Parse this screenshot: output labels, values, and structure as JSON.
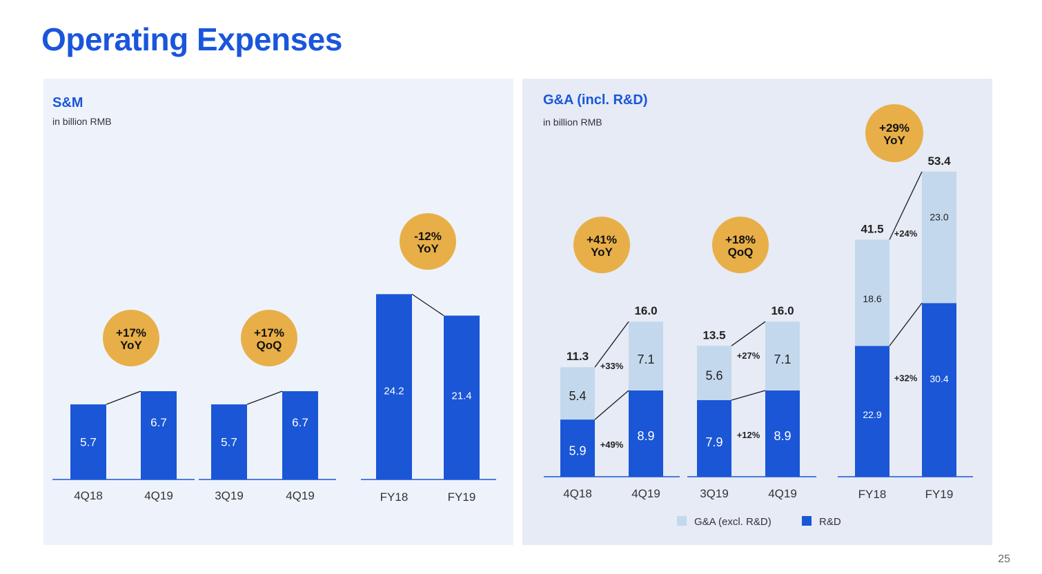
{
  "page": {
    "title": "Operating Expenses",
    "page_number": "25"
  },
  "colors": {
    "title": "#1a56db",
    "rd": "#1a56d6",
    "ga": "#c3d8ec",
    "badge": "#e8af48"
  },
  "left_panel": {
    "title": "S&M",
    "subtitle": "in billion RMB"
  },
  "right_panel": {
    "title": "G&A (incl. R&D)",
    "subtitle": "in billion RMB"
  },
  "chart_data": [
    {
      "type": "bar",
      "title": "S&M",
      "unit": "in billion RMB",
      "groups": [
        {
          "categories": [
            "4Q18",
            "4Q19"
          ],
          "values": [
            5.7,
            6.7
          ],
          "labels": [
            "5.7",
            "6.7"
          ],
          "badge": [
            "+17%",
            "YoY"
          ]
        },
        {
          "categories": [
            "3Q19",
            "4Q19"
          ],
          "values": [
            5.7,
            6.7
          ],
          "labels": [
            "5.7",
            "6.7"
          ],
          "badge": [
            "+17%",
            "QoQ"
          ]
        },
        {
          "categories": [
            "FY18",
            "FY19"
          ],
          "values": [
            24.2,
            21.4
          ],
          "labels": [
            "24.2",
            "21.4"
          ],
          "badge": [
            "-12%",
            "YoY"
          ]
        }
      ]
    },
    {
      "type": "bar",
      "stacked": true,
      "title": "G&A (incl. R&D)",
      "unit": "in billion RMB",
      "legend": [
        "G&A (excl. R&D)",
        "R&D"
      ],
      "groups": [
        {
          "categories": [
            "4Q18",
            "4Q19"
          ],
          "series": [
            {
              "name": "R&D",
              "values": [
                5.9,
                8.9
              ],
              "labels": [
                "5.9",
                "8.9"
              ]
            },
            {
              "name": "G&A (excl. R&D)",
              "values": [
                5.4,
                7.1
              ],
              "labels": [
                "5.4",
                "7.1"
              ]
            }
          ],
          "totals": [
            "11.3",
            "16.0"
          ],
          "growth_rd": "+49%",
          "growth_ga": "+33%",
          "badge": [
            "+41%",
            "YoY"
          ]
        },
        {
          "categories": [
            "3Q19",
            "4Q19"
          ],
          "series": [
            {
              "name": "R&D",
              "values": [
                7.9,
                8.9
              ],
              "labels": [
                "7.9",
                "8.9"
              ]
            },
            {
              "name": "G&A (excl. R&D)",
              "values": [
                5.6,
                7.1
              ],
              "labels": [
                "5.6",
                "7.1"
              ]
            }
          ],
          "totals": [
            "13.5",
            "16.0"
          ],
          "growth_rd": "+12%",
          "growth_ga": "+27%",
          "badge": [
            "+18%",
            "QoQ"
          ]
        },
        {
          "categories": [
            "FY18",
            "FY19"
          ],
          "series": [
            {
              "name": "R&D",
              "values": [
                22.9,
                30.4
              ],
              "labels": [
                "22.9",
                "30.4"
              ]
            },
            {
              "name": "G&A (excl. R&D)",
              "values": [
                18.6,
                23.0
              ],
              "labels": [
                "18.6",
                "23.0"
              ]
            }
          ],
          "totals": [
            "41.5",
            "53.4"
          ],
          "growth_rd": "+32%",
          "growth_ga": "+24%",
          "badge": [
            "+29%",
            "YoY"
          ]
        }
      ]
    }
  ]
}
